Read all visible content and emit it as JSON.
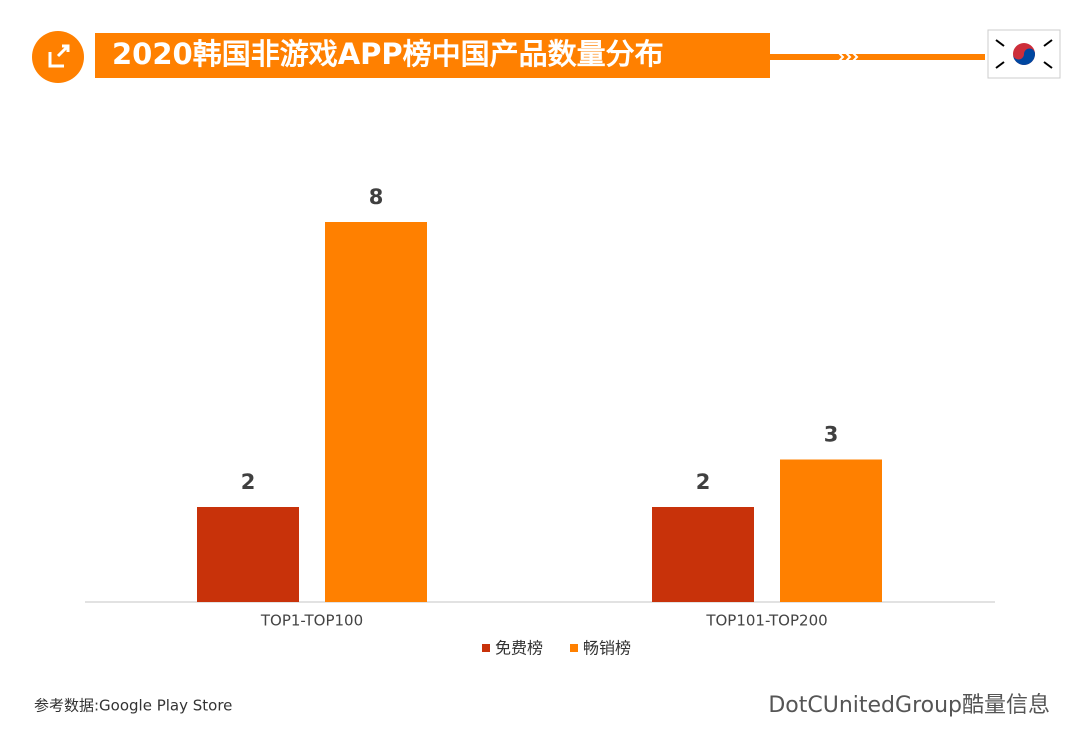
{
  "chart_data": {
    "type": "bar",
    "title": "2020韩国非游戏APP榜中国产品数量分布",
    "categories": [
      "TOP1-TOP100",
      "TOP101-TOP200"
    ],
    "series": [
      {
        "name": "免费榜",
        "color": "#c8320a",
        "values": [
          2,
          2
        ]
      },
      {
        "name": "畅销榜",
        "color": "#ff8000",
        "values": [
          8,
          3
        ]
      }
    ],
    "source": "参考数据:Google Play Store",
    "watermark": "DotCUnitedGroup酷量信息"
  }
}
